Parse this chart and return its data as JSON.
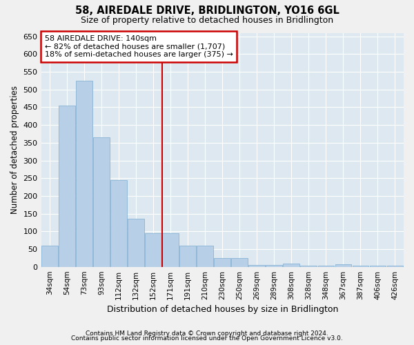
{
  "title": "58, AIREDALE DRIVE, BRIDLINGTON, YO16 6GL",
  "subtitle": "Size of property relative to detached houses in Bridlington",
  "xlabel": "Distribution of detached houses by size in Bridlington",
  "ylabel": "Number of detached properties",
  "footnote1": "Contains HM Land Registry data © Crown copyright and database right 2024.",
  "footnote2": "Contains public sector information licensed under the Open Government Licence v3.0.",
  "categories": [
    "34sqm",
    "54sqm",
    "73sqm",
    "93sqm",
    "112sqm",
    "132sqm",
    "152sqm",
    "171sqm",
    "191sqm",
    "210sqm",
    "230sqm",
    "250sqm",
    "269sqm",
    "289sqm",
    "308sqm",
    "328sqm",
    "348sqm",
    "367sqm",
    "387sqm",
    "406sqm",
    "426sqm"
  ],
  "values": [
    60,
    455,
    525,
    365,
    245,
    135,
    95,
    95,
    60,
    60,
    25,
    25,
    5,
    5,
    10,
    3,
    3,
    8,
    3,
    3,
    3
  ],
  "bar_color": "#b8cfe8",
  "bar_edge_color": "#7aabd0",
  "background_color": "#dde8f0",
  "grid_color": "#ffffff",
  "vline_color": "#cc0000",
  "vline_x": 6.5,
  "annotation_text": "58 AIREDALE DRIVE: 140sqm\n← 82% of detached houses are smaller (1,707)\n18% of semi-detached houses are larger (375) →",
  "annotation_box_color": "#cc0000",
  "ylim": [
    0,
    660
  ],
  "yticks": [
    0,
    50,
    100,
    150,
    200,
    250,
    300,
    350,
    400,
    450,
    500,
    550,
    600,
    650
  ],
  "fig_bg": "#f0f0f0"
}
